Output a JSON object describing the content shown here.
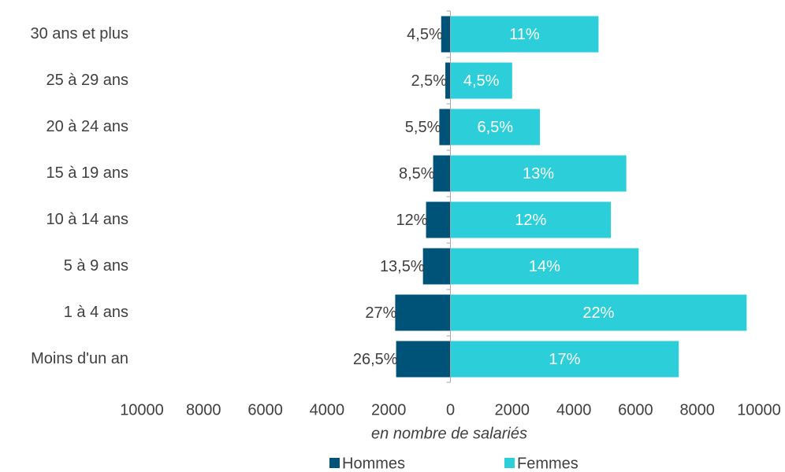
{
  "chart_data": {
    "type": "butterfly",
    "categories": [
      "30 ans et plus",
      "25 à 29 ans",
      "20 à 24 ans",
      "15 à 19 ans",
      "10 à 14 ans",
      "5 à 9 ans",
      "1 à 4 ans",
      "Moins d'un an"
    ],
    "series": [
      {
        "name": "Hommes",
        "color": "#005378",
        "values": [
          -300,
          -165,
          -360,
          -560,
          -790,
          -890,
          -1790,
          -1760
        ],
        "percent_labels": [
          "4,5%",
          "2,5%",
          "5,5%",
          "8,5%",
          "12%",
          "13,5%",
          "27%",
          "26,5%"
        ]
      },
      {
        "name": "Femmes",
        "color": "#2ccfd9",
        "values": [
          4800,
          2000,
          2900,
          5700,
          5200,
          6100,
          9600,
          7400
        ],
        "percent_labels": [
          "11%",
          "4,5%",
          "6,5%",
          "13%",
          "12%",
          "14%",
          "22%",
          "17%"
        ]
      }
    ],
    "xlim": [
      -10000,
      10000
    ],
    "xticks": [
      {
        "value": -10000,
        "label": "10000"
      },
      {
        "value": -8000,
        "label": "8000"
      },
      {
        "value": -6000,
        "label": "6000"
      },
      {
        "value": -4000,
        "label": "4000"
      },
      {
        "value": -2000,
        "label": "2000"
      },
      0,
      2000,
      4000,
      6000,
      8000,
      10000
    ],
    "x_label": "en nombre de salariés"
  }
}
